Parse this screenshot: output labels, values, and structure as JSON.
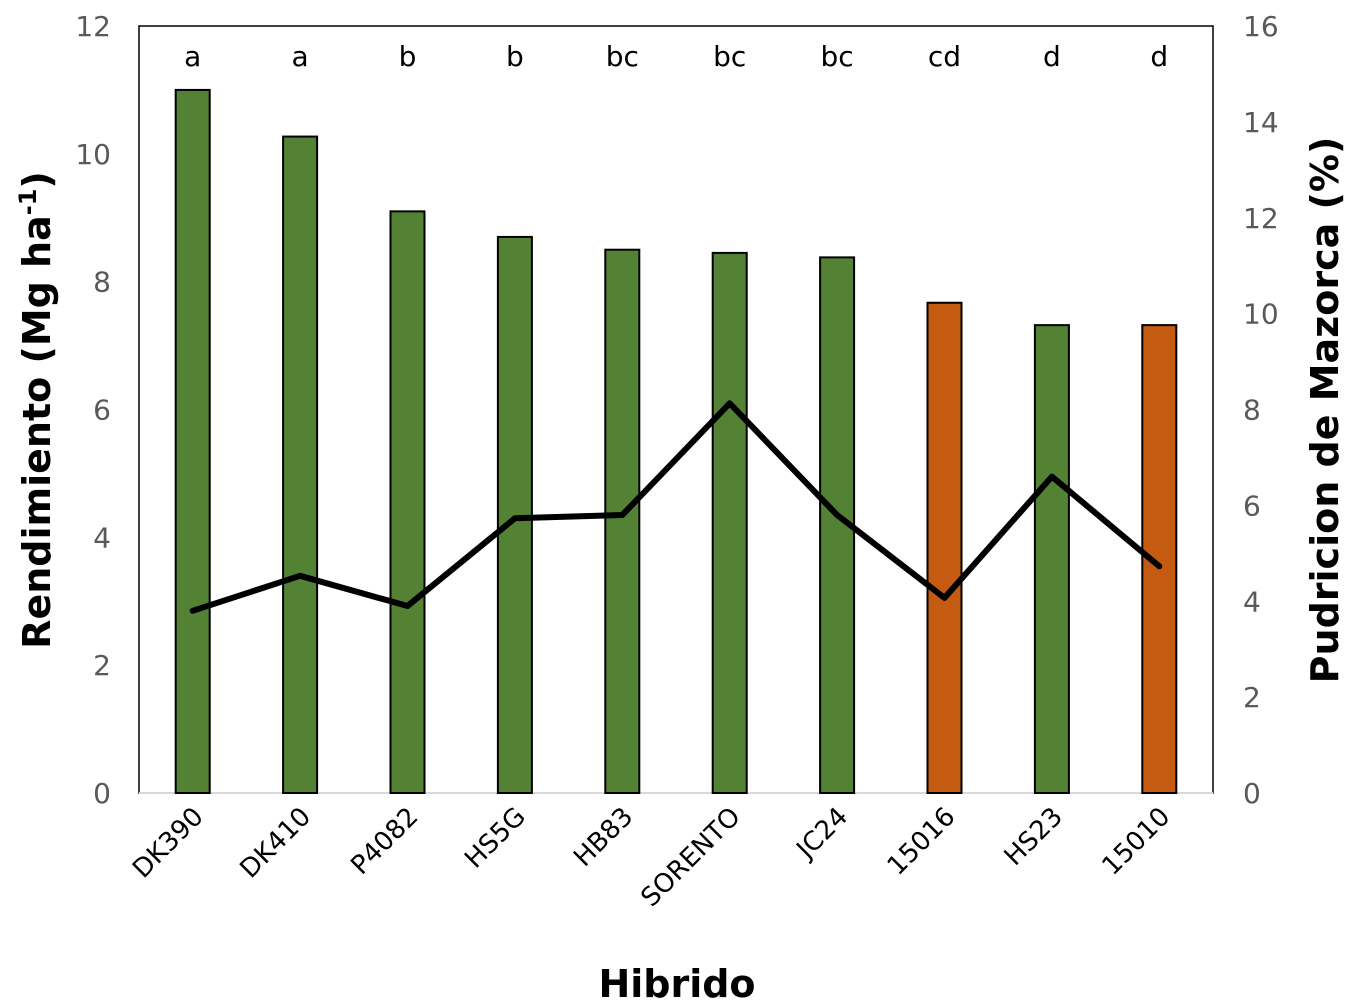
{
  "chart_data": {
    "type": "bar",
    "title": "",
    "xlabel": "Hibrido",
    "ylabel_left": {
      "main": "Rendimiento (Mg ha",
      "sup": "-1",
      "tail": ")"
    },
    "ylabel_right": "Pudricion de Mazorca (%)",
    "categories": [
      "DK390",
      "DK410",
      "P4082",
      "HS5G",
      "HB83",
      "SORENTO",
      "JC24",
      "15016",
      "HS23",
      "15010"
    ],
    "significance_letters": [
      "a",
      "a",
      "b",
      "b",
      "bc",
      "bc",
      "bc",
      "cd",
      "d",
      "d"
    ],
    "series": [
      {
        "type": "bar",
        "axis": "left",
        "values": [
          11.0,
          10.27,
          9.1,
          8.7,
          8.5,
          8.45,
          8.38,
          7.67,
          7.32,
          7.32
        ],
        "colors": [
          "#548235",
          "#548235",
          "#548235",
          "#548235",
          "#548235",
          "#548235",
          "#548235",
          "#C55A11",
          "#548235",
          "#C55A11"
        ]
      },
      {
        "type": "line",
        "axis": "right",
        "values": [
          3.8,
          4.53,
          3.9,
          5.73,
          5.8,
          8.13,
          5.8,
          4.07,
          6.6,
          4.73
        ],
        "color": "#000000"
      }
    ],
    "ylim_left": [
      0,
      12
    ],
    "yticks_left": [
      "0",
      "2",
      "4",
      "6",
      "8",
      "10",
      "12"
    ],
    "ylim_right": [
      0,
      16
    ],
    "yticks_right": [
      "0",
      "2",
      "4",
      "6",
      "8",
      "10",
      "12",
      "14",
      "16"
    ],
    "grid": false,
    "legend": "none"
  }
}
